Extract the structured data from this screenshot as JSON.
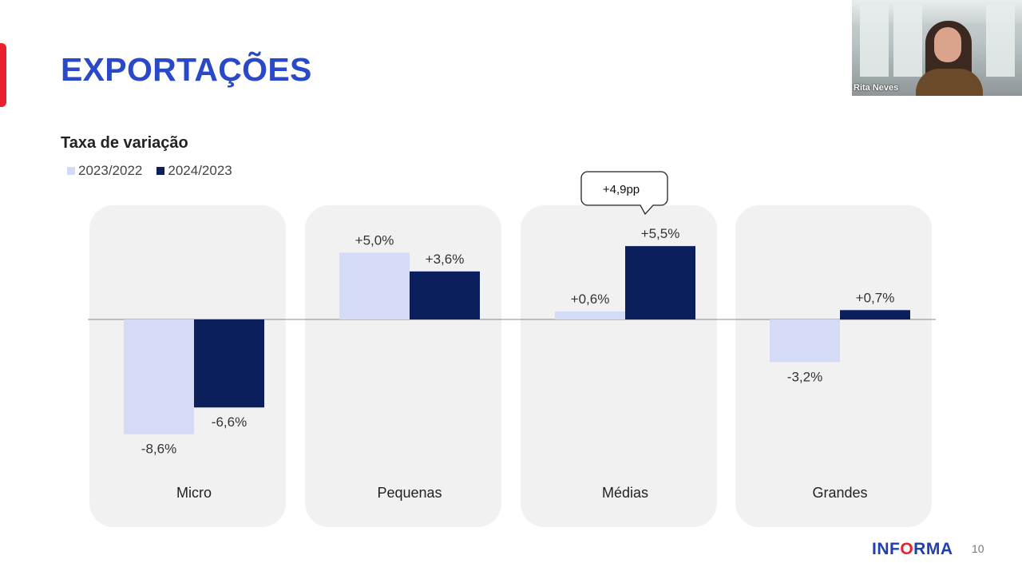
{
  "slide": {
    "title": "EXPORTAÇÕES",
    "page_number": "10"
  },
  "logo": {
    "text_before": "INF",
    "text_mid": "O",
    "text_after": "RMA"
  },
  "webcam": {
    "participant_name": "Rita Neves"
  },
  "colors": {
    "series_2023": "#d3dbf6",
    "series_2024": "#0a1f5c",
    "title": "#2a49c8",
    "panel": "#f1f1f1"
  },
  "chart_data": {
    "type": "bar",
    "title": "Taxa de variação",
    "categories": [
      "Micro",
      "Pequenas",
      "Médias",
      "Grandes"
    ],
    "series": [
      {
        "name": "2023/2022",
        "values": [
          -8.6,
          5.0,
          0.6,
          -3.2
        ],
        "labels": [
          "-8,6%",
          "+5,0%",
          "+0,6%",
          "-3,2%"
        ]
      },
      {
        "name": "2024/2023",
        "values": [
          -6.6,
          3.6,
          5.5,
          0.7
        ],
        "labels": [
          "-6,6%",
          "+3,6%",
          "+5,5%",
          "+0,7%"
        ]
      }
    ],
    "annotation": {
      "text": "+4,9pp",
      "category": "Médias"
    },
    "legend_position": "top-left",
    "grid": false
  }
}
